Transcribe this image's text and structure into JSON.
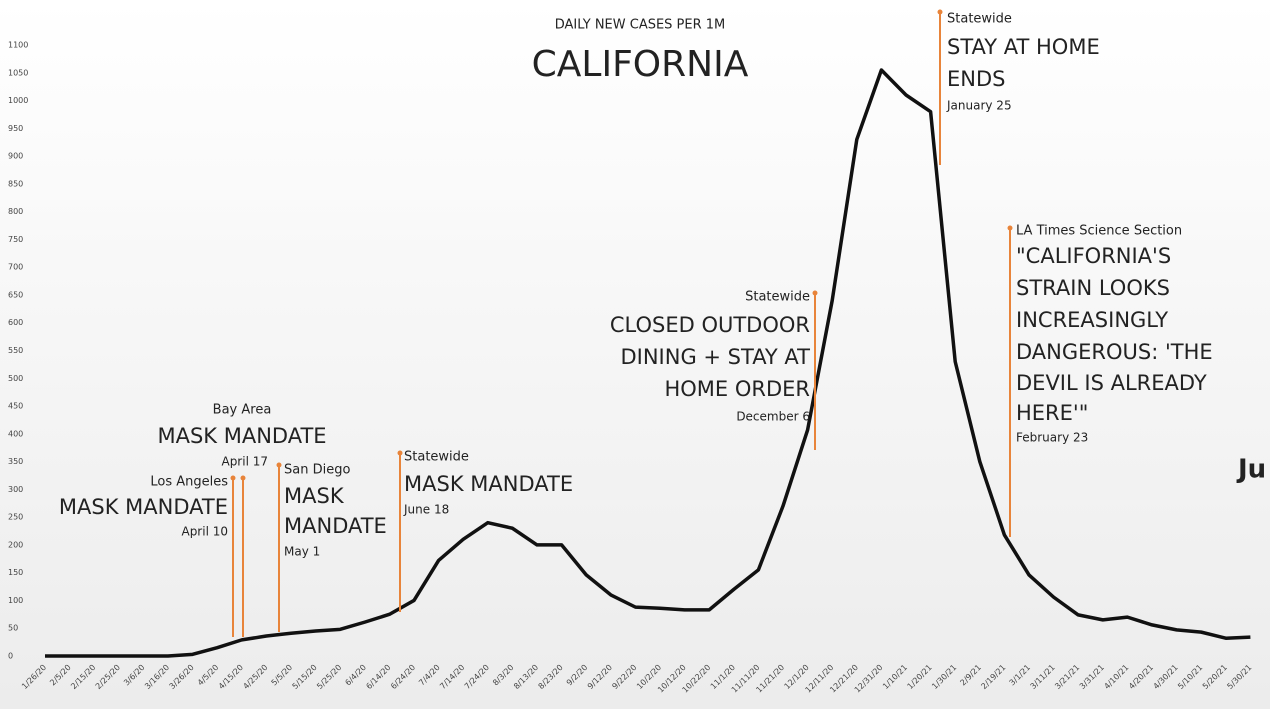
{
  "chart_data": {
    "type": "line",
    "title": "CALIFORNIA",
    "subtitle": "DAILY NEW CASES PER 1M",
    "categories": [
      "1/26/20",
      "2/5/20",
      "2/15/20",
      "2/25/20",
      "3/6/20",
      "3/16/20",
      "3/26/20",
      "4/5/20",
      "4/15/20",
      "4/25/20",
      "5/5/20",
      "5/15/20",
      "5/25/20",
      "6/4/20",
      "6/14/20",
      "6/24/20",
      "7/4/20",
      "7/14/20",
      "7/24/20",
      "8/3/20",
      "8/13/20",
      "8/23/20",
      "9/2/20",
      "9/12/20",
      "9/22/20",
      "10/2/20",
      "10/12/20",
      "10/22/20",
      "11/1/20",
      "11/11/20",
      "11/21/20",
      "12/1/20",
      "12/11/20",
      "12/21/20",
      "12/31/20",
      "1/10/21",
      "1/20/21",
      "1/30/21",
      "2/9/21",
      "2/19/21",
      "3/1/21",
      "3/11/21",
      "3/21/21",
      "3/31/21",
      "4/10/21",
      "4/20/21",
      "4/30/21",
      "5/10/21",
      "5/20/21",
      "5/30/21"
    ],
    "values": [
      0,
      0,
      0,
      0,
      0,
      0,
      3,
      15,
      29,
      36,
      41,
      45,
      48,
      61,
      75,
      100,
      172,
      210,
      240,
      230,
      200,
      200,
      146,
      110,
      88,
      86,
      83,
      83,
      120,
      155,
      270,
      407,
      640,
      930,
      1055,
      1010,
      980,
      530,
      350,
      218,
      146,
      106,
      74,
      65,
      70,
      56,
      47,
      43,
      32,
      34
    ],
    "color": "#111111",
    "ylim": [
      0,
      1100
    ],
    "yticks": [
      0,
      50,
      100,
      150,
      200,
      250,
      300,
      350,
      400,
      450,
      500,
      550,
      600,
      650,
      700,
      750,
      800,
      850,
      900,
      950,
      1000,
      1050,
      1100
    ],
    "grid": false,
    "annotation_color": "#e8843a",
    "annotations": [
      {
        "place": "Los Angeles",
        "headline": [
          "MASK MANDATE"
        ],
        "date": "April 10"
      },
      {
        "place": "Bay Area",
        "headline": [
          "MASK MANDATE"
        ],
        "date": "April 17"
      },
      {
        "place": "San Diego",
        "headline": [
          "MASK",
          "MANDATE"
        ],
        "date": "May 1"
      },
      {
        "place": "Statewide",
        "headline": [
          "MASK MANDATE"
        ],
        "date": "June 18"
      },
      {
        "place": "Statewide",
        "headline": [
          "CLOSED OUTDOOR",
          "DINING + STAY AT",
          "HOME ORDER"
        ],
        "date": "December 6"
      },
      {
        "place": "Statewide",
        "headline": [
          "STAY AT HOME",
          "ENDS"
        ],
        "date": "January 25"
      },
      {
        "place": "LA Times Science Section",
        "headline": [
          "\"CALIFORNIA'S",
          "STRAIN LOOKS",
          "INCREASINGLY",
          "DANGEROUS: 'THE",
          "DEVIL IS ALREADY",
          "HERE'\""
        ],
        "date": "February 23"
      }
    ],
    "cutoff_text": "Ju"
  }
}
